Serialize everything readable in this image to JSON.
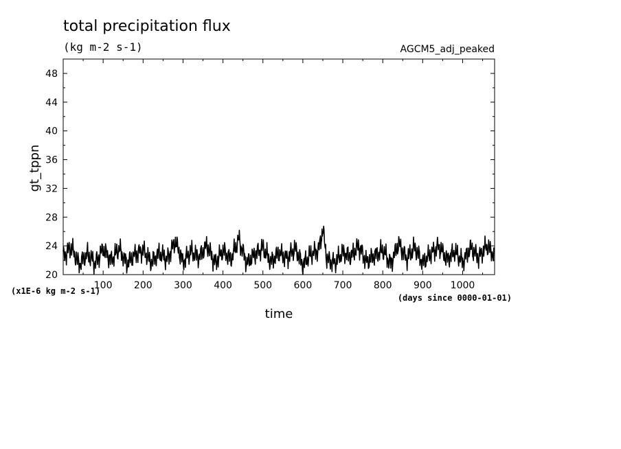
{
  "chart_data": {
    "type": "line",
    "title": "total precipitation flux",
    "units": "(kg m-2 s-1)",
    "experiment": "AGCM5_adj_peaked",
    "ylabel": "gt_tppn",
    "xlabel": "time",
    "y_scale_note": "(x1E-6 kg m-2 s-1)",
    "x_units_note": "(days since 0000-01-01)",
    "xlim": [
      0,
      1080
    ],
    "ylim": [
      20,
      50
    ],
    "x_tick_labels": [
      "100",
      "200",
      "300",
      "400",
      "500",
      "600",
      "700",
      "800",
      "900",
      "1000"
    ],
    "y_tick_labels": [
      "20",
      "24",
      "28",
      "32",
      "36",
      "40",
      "44",
      "48"
    ],
    "series": [
      {
        "x": [
          0,
          20,
          40,
          60,
          80,
          100,
          120,
          140,
          160,
          180,
          200,
          220,
          240,
          260,
          280,
          300,
          320,
          340,
          360,
          380,
          400,
          420,
          440,
          460,
          480,
          500,
          520,
          540,
          560,
          580,
          600,
          620,
          640,
          650,
          660,
          680,
          700,
          720,
          740,
          760,
          780,
          800,
          820,
          840,
          860,
          880,
          900,
          920,
          940,
          960,
          980,
          1000,
          1020,
          1040,
          1060,
          1080
        ],
        "values": [
          22.5,
          23.8,
          21.4,
          22.9,
          21.6,
          23.5,
          22.0,
          23.6,
          21.5,
          22.8,
          23.4,
          21.7,
          23.0,
          22.1,
          24.6,
          21.8,
          23.2,
          22.4,
          24.1,
          21.6,
          23.3,
          22.2,
          24.9,
          21.5,
          22.9,
          23.7,
          21.8,
          23.0,
          22.3,
          23.6,
          21.4,
          22.8,
          23.5,
          26.3,
          22.2,
          21.6,
          23.1,
          22.5,
          24.0,
          21.7,
          22.7,
          23.4,
          21.5,
          24.3,
          22.2,
          23.8,
          21.6,
          22.9,
          24.0,
          22.1,
          23.2,
          21.8,
          23.7,
          22.4,
          24.0,
          22.6
        ]
      }
    ]
  }
}
